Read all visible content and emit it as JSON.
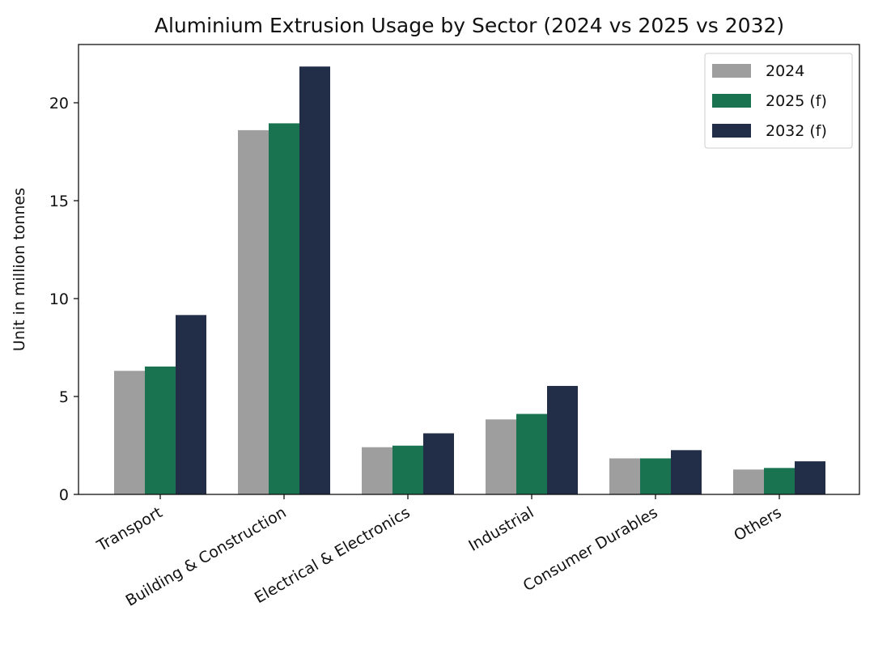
{
  "chart_data": {
    "type": "bar",
    "title": "Aluminium Extrusion Usage by Sector (2024 vs 2025 vs 2032)",
    "xlabel": "",
    "ylabel": "Unit in million tonnes",
    "ylim": [
      0,
      23
    ],
    "yticks": [
      0,
      5,
      10,
      15,
      20
    ],
    "grid": false,
    "legend_position": "top-right",
    "categories": [
      "Transport",
      "Building & Construction",
      "Electrical & Electronics",
      "Industrial",
      "Consumer Durables",
      "Others"
    ],
    "series": [
      {
        "name": "2024",
        "color": "#9e9e9e",
        "values": [
          6.31,
          18.6,
          2.41,
          3.83,
          1.84,
          1.27
        ]
      },
      {
        "name": "2025 (f)",
        "color": "#1a7350",
        "values": [
          6.53,
          18.95,
          2.49,
          4.11,
          1.84,
          1.35
        ]
      },
      {
        "name": "2032 (f)",
        "color": "#222d48",
        "values": [
          9.16,
          21.85,
          3.12,
          5.54,
          2.26,
          1.69
        ]
      }
    ]
  }
}
